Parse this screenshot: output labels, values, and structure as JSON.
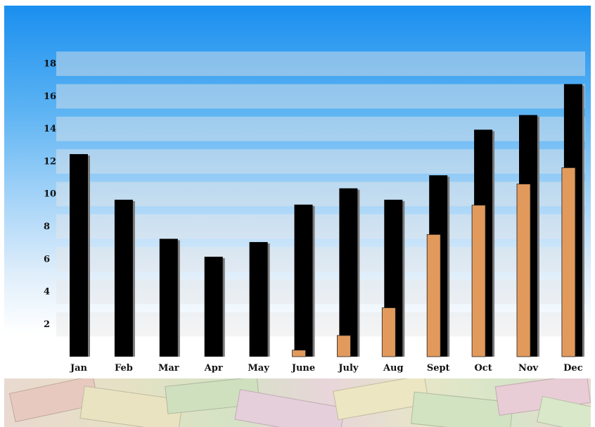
{
  "chart_data": {
    "type": "bar",
    "categories": [
      "Jan",
      "Feb",
      "Mar",
      "Apr",
      "May",
      "June",
      "July",
      "Aug",
      "Sept",
      "Oct",
      "Nov",
      "Dec"
    ],
    "series": [
      {
        "values": [
          12.4,
          9.6,
          7.2,
          6.1,
          7.0,
          9.3,
          10.3,
          9.6,
          11.1,
          13.9,
          14.8,
          16.7
        ]
      },
      {
        "values": [
          0,
          0,
          0,
          0,
          0,
          0.4,
          1.3,
          3.0,
          7.5,
          9.3,
          10.6,
          11.6
        ]
      }
    ],
    "yticks": [
      2,
      4,
      6,
      8,
      10,
      12,
      14,
      16,
      18
    ],
    "ylim": [
      1,
      19
    ],
    "colors": {
      "series_1": "#000000",
      "series_2": "#e29a5c",
      "stripe": "#e6e6e6"
    },
    "grid": "horizontal stripes",
    "legend": "none"
  }
}
